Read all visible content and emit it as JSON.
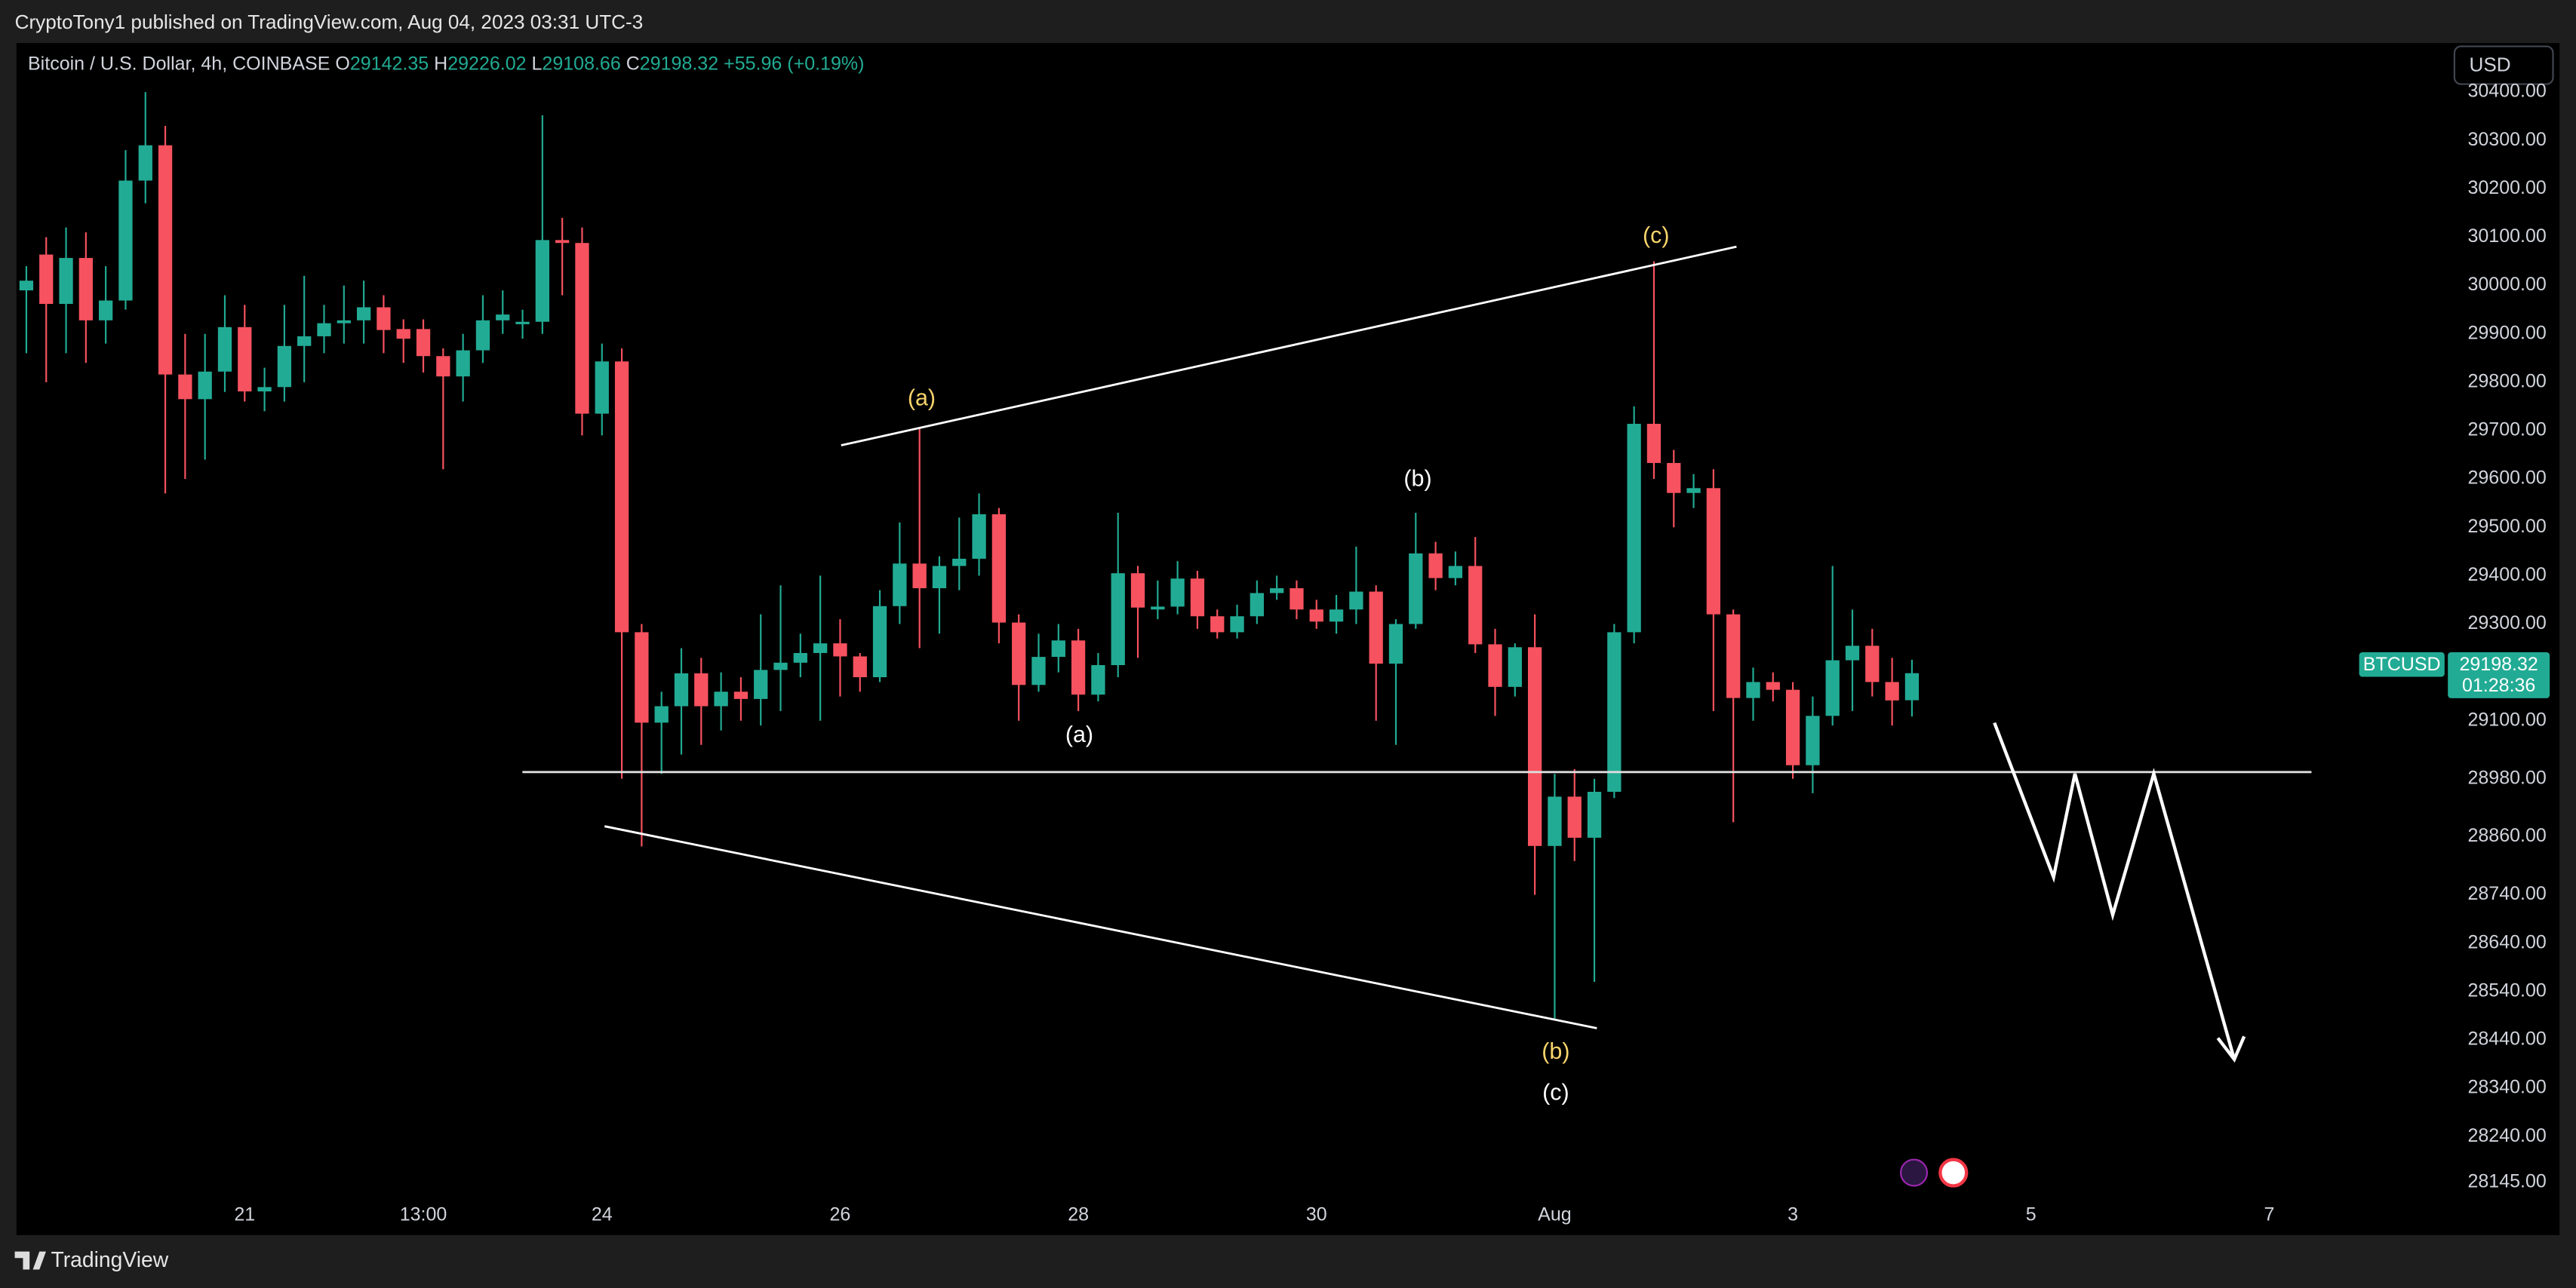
{
  "header": {
    "byline": "CryptoTony1 published on TradingView.com, Aug 04, 2023 03:31 UTC-3",
    "symbol": "Bitcoin / U.S. Dollar, 4h, COINBASE",
    "ohlc": [
      {
        "key": "O",
        "value": "29142.35"
      },
      {
        "key": "H",
        "value": "29226.02"
      },
      {
        "key": "L",
        "value": "29108.66"
      },
      {
        "key": "C",
        "value": "29198.32"
      }
    ],
    "change": "+55.96 (+0.19%)",
    "currency": "USD"
  },
  "price_label": {
    "ticker": "BTCUSD",
    "price": "29198.32",
    "countdown": "01:28:36"
  },
  "annotations": {
    "yellow_a": "(a)",
    "white_b": "(b)",
    "yellow_c": "(c)",
    "white_a": "(a)",
    "yellow_b": "(b)",
    "white_c": "(c)"
  },
  "footer": {
    "brand": "TradingView"
  },
  "chart_data": {
    "type": "candlestick",
    "up_color": "#22ab94",
    "down_color": "#f7525f",
    "grid": false,
    "xlim": [
      -0.5,
      122
    ],
    "ylim": [
      28111,
      30498
    ],
    "xticks": [
      {
        "value": 11,
        "label": "21"
      },
      {
        "value": 20,
        "label": "13:00"
      },
      {
        "value": 29,
        "label": "24"
      },
      {
        "value": 41,
        "label": "26"
      },
      {
        "value": 53,
        "label": "28"
      },
      {
        "value": 65,
        "label": "30"
      },
      {
        "value": 77,
        "label": "Aug"
      },
      {
        "value": 89,
        "label": "3"
      },
      {
        "value": 101,
        "label": "5"
      },
      {
        "value": 113,
        "label": "7"
      }
    ],
    "yticks": [
      {
        "value": 30400,
        "label": "30400.00"
      },
      {
        "value": 30300,
        "label": "30300.00"
      },
      {
        "value": 30200,
        "label": "30200.00"
      },
      {
        "value": 30100,
        "label": "30100.00"
      },
      {
        "value": 30000,
        "label": "30000.00"
      },
      {
        "value": 29900,
        "label": "29900.00"
      },
      {
        "value": 29800,
        "label": "29800.00"
      },
      {
        "value": 29700,
        "label": "29700.00"
      },
      {
        "value": 29600,
        "label": "29600.00"
      },
      {
        "value": 29500,
        "label": "29500.00"
      },
      {
        "value": 29400,
        "label": "29400.00"
      },
      {
        "value": 29300,
        "label": "29300.00"
      },
      {
        "value": 29100,
        "label": "29100.00"
      },
      {
        "value": 28980,
        "label": "28980.00"
      },
      {
        "value": 28860,
        "label": "28860.00"
      },
      {
        "value": 28740,
        "label": "28740.00"
      },
      {
        "value": 28640,
        "label": "28640.00"
      },
      {
        "value": 28540,
        "label": "28540.00"
      },
      {
        "value": 28440,
        "label": "28440.00"
      },
      {
        "value": 28340,
        "label": "28340.00"
      },
      {
        "value": 28240,
        "label": "28240.00"
      },
      {
        "value": 28145,
        "label": "28145.00"
      }
    ],
    "open": [
      29990,
      30064,
      29962,
      30057,
      29928,
      29969,
      30217,
      30290,
      29816,
      29765,
      29822,
      29914,
      29781,
      29790,
      29875,
      29895,
      29922,
      29928,
      29955,
      29910,
      29910,
      29854,
      29812,
      29866,
      29928,
      29920,
      29925,
      30094,
      30088,
      29735,
      29843,
      29283,
      29096,
      29130,
      29198,
      29130,
      29160,
      29145,
      29205,
      29220,
      29240,
      29260,
      29233,
      29190,
      29337,
      29425,
      29374,
      29420,
      29435,
      29527,
      29303,
      29174,
      29232,
      29266,
      29154,
      29215,
      29405,
      29330,
      29336,
      29394,
      29316,
      29283,
      29316,
      29364,
      29374,
      29330,
      29305,
      29330,
      29367,
      29218,
      29300,
      29446,
      29395,
      29420,
      29258,
      29170,
      29252,
      28841,
      28943,
      28858,
      28953,
      29283,
      29714,
      29633,
      29571,
      29581,
      29320,
      29147,
      29180,
      29164,
      29008,
      29110,
      29225,
      29255,
      29180,
      29142.35
    ],
    "high": [
      30040,
      30100,
      30120,
      30110,
      30040,
      30280,
      30400,
      30330,
      29900,
      29900,
      29980,
      29960,
      29830,
      29960,
      30020,
      29960,
      30000,
      30010,
      29980,
      29930,
      29930,
      29870,
      29900,
      29980,
      29990,
      29950,
      30352,
      30140,
      30120,
      29880,
      29870,
      29300,
      29160,
      29250,
      29230,
      29200,
      29190,
      29320,
      29380,
      29280,
      29400,
      29310,
      29240,
      29370,
      29510,
      29707,
      29440,
      29520,
      29570,
      29540,
      29320,
      29280,
      29300,
      29290,
      29240,
      29530,
      29420,
      29390,
      29430,
      29410,
      29330,
      29340,
      29390,
      29400,
      29390,
      29350,
      29360,
      29460,
      29380,
      29310,
      29530,
      29470,
      29450,
      29480,
      29290,
      29260,
      29320,
      28990,
      29000,
      28980,
      29300,
      29750,
      30050,
      29660,
      29610,
      29620,
      29330,
      29210,
      29200,
      29180,
      29150,
      29420,
      29330,
      29290,
      29230,
      29226.02
    ],
    "low": [
      29860,
      29800,
      29860,
      29840,
      29880,
      29950,
      30170,
      29570,
      29600,
      29640,
      29780,
      29760,
      29740,
      29760,
      29800,
      29860,
      29880,
      29880,
      29860,
      29840,
      29820,
      29620,
      29760,
      29840,
      29900,
      29890,
      29900,
      29980,
      29690,
      29690,
      28980,
      28840,
      28990,
      29030,
      29050,
      29080,
      29100,
      29090,
      29120,
      29190,
      29100,
      29150,
      29160,
      29180,
      29300,
      29250,
      29280,
      29370,
      29400,
      29260,
      29100,
      29160,
      29200,
      29120,
      29140,
      29190,
      29230,
      29310,
      29320,
      29290,
      29270,
      29270,
      29300,
      29350,
      29310,
      29290,
      29280,
      29300,
      29100,
      29050,
      29290,
      29370,
      29380,
      29240,
      29110,
      29150,
      28740,
      28480,
      28810,
      28560,
      28940,
      29260,
      29600,
      29500,
      29540,
      29120,
      28890,
      29100,
      29140,
      28980,
      28950,
      29090,
      29120,
      29150,
      29090,
      29108.66
    ],
    "close": [
      30010,
      29962,
      30057,
      29928,
      29969,
      30217,
      30290,
      29816,
      29765,
      29822,
      29914,
      29781,
      29790,
      29875,
      29895,
      29922,
      29928,
      29955,
      29908,
      29890,
      29854,
      29812,
      29866,
      29928,
      29940,
      29925,
      30094,
      30088,
      29735,
      29843,
      29283,
      29096,
      29130,
      29198,
      29130,
      29160,
      29145,
      29205,
      29220,
      29240,
      29260,
      29233,
      29190,
      29337,
      29425,
      29374,
      29420,
      29435,
      29527,
      29303,
      29174,
      29232,
      29266,
      29154,
      29215,
      29405,
      29334,
      29336,
      29394,
      29316,
      29283,
      29316,
      29364,
      29374,
      29330,
      29305,
      29330,
      29367,
      29218,
      29300,
      29446,
      29395,
      29420,
      29258,
      29170,
      29252,
      28841,
      28943,
      28858,
      28953,
      29283,
      29714,
      29633,
      29571,
      29581,
      29320,
      29147,
      29180,
      29164,
      29008,
      29110,
      29225,
      29255,
      29180,
      29142,
      29198.32
    ]
  }
}
